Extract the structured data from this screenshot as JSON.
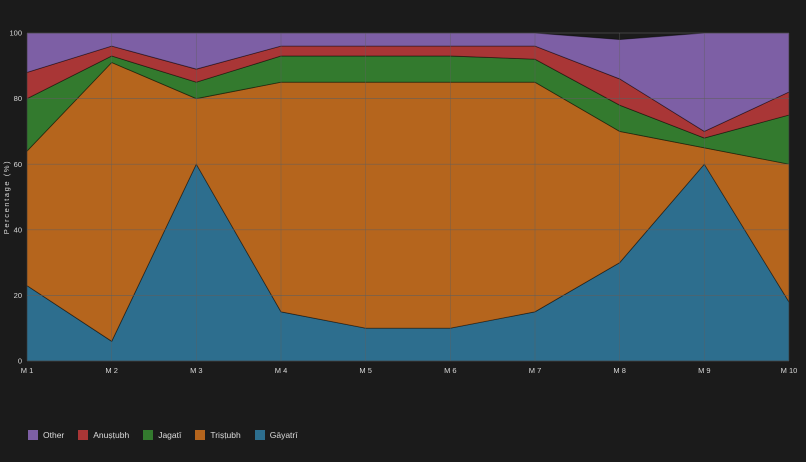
{
  "chart_data": {
    "type": "area",
    "stacked": true,
    "title": "",
    "xlabel": "",
    "ylabel": "Percentage (%)",
    "ylim": [
      0,
      100
    ],
    "yticks": [
      0,
      20,
      40,
      60,
      80,
      100
    ],
    "categories": [
      "M 1",
      "M 2",
      "M 3",
      "M 4",
      "M 5",
      "M 6",
      "M 7",
      "M 8",
      "M 9",
      "M 10"
    ],
    "series": [
      {
        "name": "Gāyatrī",
        "color": "#2d6e8e",
        "values": [
          23,
          6,
          60,
          15,
          10,
          10,
          15,
          30,
          60,
          18
        ]
      },
      {
        "name": "Triṣṭubh",
        "color": "#b5651d",
        "values": [
          41,
          85,
          20,
          70,
          75,
          75,
          70,
          40,
          5,
          42
        ]
      },
      {
        "name": "Jagatī",
        "color": "#337a2e",
        "values": [
          16,
          2,
          5,
          8,
          8,
          8,
          7,
          8,
          3,
          15
        ]
      },
      {
        "name": "Anuṣṭubh",
        "color": "#a93636",
        "values": [
          8,
          3,
          4,
          3,
          3,
          3,
          4,
          8,
          2,
          7
        ]
      },
      {
        "name": "Other",
        "color": "#7d5fa5",
        "values": [
          12,
          4,
          11,
          4,
          4,
          4,
          4,
          12,
          30,
          18
        ]
      }
    ],
    "legend": [
      "Other",
      "Anuṣṭubh",
      "Jagatī",
      "Triṣṭubh",
      "Gāyatrī"
    ],
    "legend_position": "bottom-left",
    "grid": true
  },
  "colors": {
    "background": "#1b1b1b",
    "grid": "#5f5f5f",
    "text": "#d9d9d9"
  }
}
